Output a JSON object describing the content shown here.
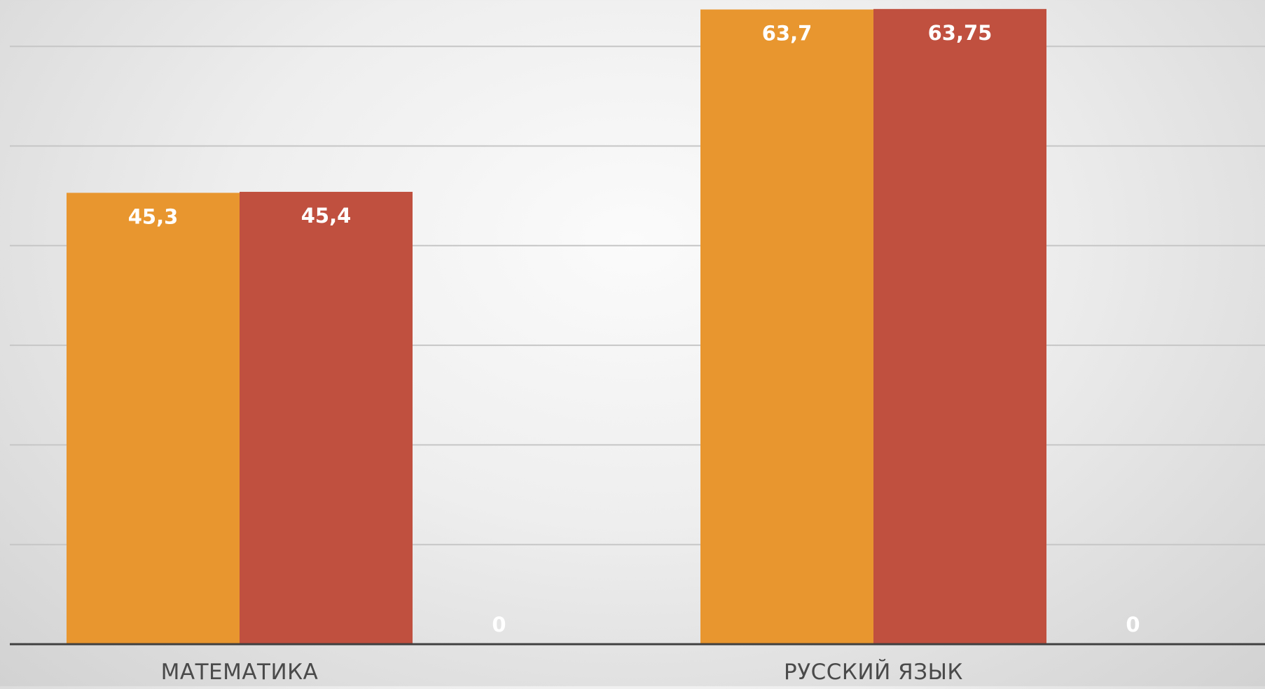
{
  "chart_data": {
    "type": "bar",
    "categories": [
      "МАТЕМАТИКА",
      "РУССКИЙ ЯЗЫК"
    ],
    "series": [
      {
        "values": [
          45.3,
          63.7
        ],
        "labels": [
          "45,3",
          "63,7"
        ],
        "color": "#E8962F"
      },
      {
        "values": [
          45.4,
          63.75
        ],
        "labels": [
          "45,4",
          "63,75"
        ],
        "color": "#C0503F"
      },
      {
        "values": [
          0,
          0
        ],
        "labels": [
          "0",
          "0"
        ],
        "color": "#A5A5A5"
      }
    ],
    "title": "",
    "xlabel": "",
    "ylabel": "",
    "ylim": [
      0,
      64
    ],
    "grid": true,
    "legend": "none",
    "colors": {
      "gridline": "#c6c6c6",
      "axis": "#404040",
      "value_label": "#ffffff",
      "category_label": "#4a4a4a"
    }
  }
}
